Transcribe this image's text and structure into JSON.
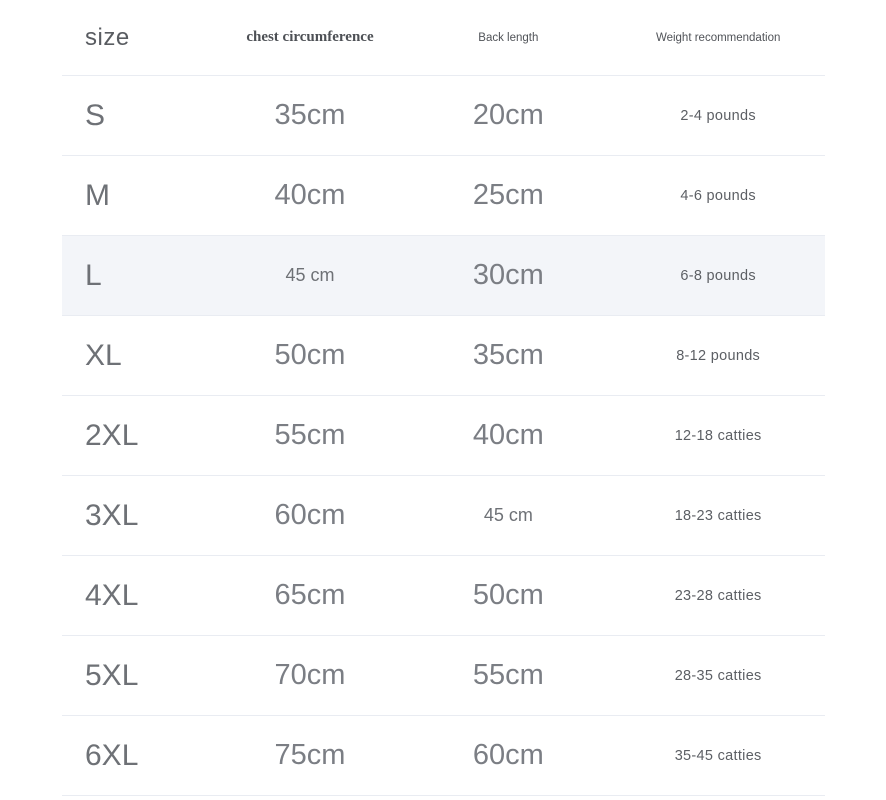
{
  "colors": {
    "page_background": "#ffffff",
    "highlight_row_bg": "#f3f5f9",
    "divider": "#e9ecf2",
    "value_text": "#7b7e84",
    "header_text": "#4d5055"
  },
  "chart_data": {
    "type": "table",
    "title": "",
    "columns": [
      "size",
      "chest circumference",
      "Back length",
      "Weight recommendation"
    ],
    "highlighted_row": "L",
    "rows": [
      {
        "size": "S",
        "chest": "35cm",
        "back": "20cm",
        "weight": "2-4 pounds"
      },
      {
        "size": "M",
        "chest": "40cm",
        "back": "25cm",
        "weight": "4-6 pounds"
      },
      {
        "size": "L",
        "chest": "45 cm",
        "back": "30cm",
        "weight": "6-8 pounds"
      },
      {
        "size": "XL",
        "chest": "50cm",
        "back": "35cm",
        "weight": "8-12 pounds"
      },
      {
        "size": "2XL",
        "chest": "55cm",
        "back": "40cm",
        "weight": "12-18 catties"
      },
      {
        "size": "3XL",
        "chest": "60cm",
        "back": "45 cm",
        "weight": "18-23 catties"
      },
      {
        "size": "4XL",
        "chest": "65cm",
        "back": "50cm",
        "weight": "23-28 catties"
      },
      {
        "size": "5XL",
        "chest": "70cm",
        "back": "55cm",
        "weight": "28-35 catties"
      },
      {
        "size": "6XL",
        "chest": "75cm",
        "back": "60cm",
        "weight": "35-45 catties"
      }
    ]
  }
}
